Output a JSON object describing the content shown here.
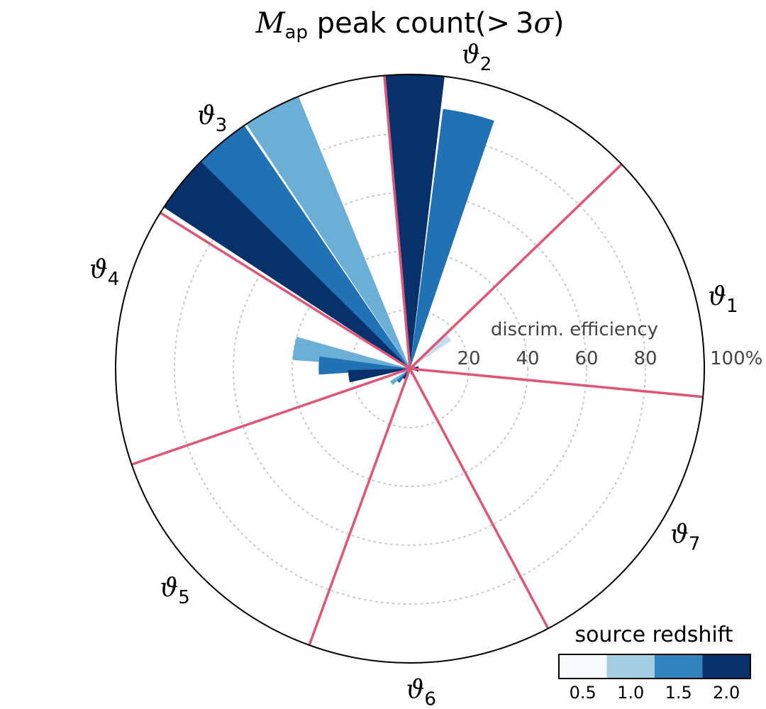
{
  "chart_data": {
    "type": "polar_bar",
    "title_symbol": "M",
    "title_symbol_sub": "ap",
    "title_rest": " peak count(",
    "title_gt": ">",
    "title_tail": "3",
    "title_sigma": "σ",
    "title_close": ")",
    "radial_axis_title": "discrim. efficiency",
    "radial_ticks": [
      "20",
      "40",
      "60",
      "80",
      "100%"
    ],
    "radial_tick_values": [
      20,
      40,
      60,
      80,
      100
    ],
    "rlim": [
      0,
      100
    ],
    "grid": true,
    "colorbar": {
      "title": "source redshift",
      "tick_labels": [
        "0.5",
        "1.0",
        "1.5",
        "2.0"
      ],
      "colors": [
        "#f7fbff",
        "#a6cee3",
        "#3182bd",
        "#08306b"
      ]
    },
    "redshift_colors": {
      "0.5": "#f7fbff",
      "1.0": "#c6dbef",
      "1.5": "#2171b5",
      "2.0": "#08306b"
    },
    "sector_labels": [
      {
        "symbol": "ϑ",
        "sub": "1"
      },
      {
        "symbol": "ϑ",
        "sub": "2"
      },
      {
        "symbol": "ϑ",
        "sub": "3"
      },
      {
        "symbol": "ϑ",
        "sub": "4"
      },
      {
        "symbol": "ϑ",
        "sub": "5"
      },
      {
        "symbol": "ϑ",
        "sub": "6"
      },
      {
        "symbol": "ϑ",
        "sub": "7"
      }
    ],
    "sector_label_angles_deg": [
      13,
      78,
      128,
      162,
      223,
      272,
      329
    ],
    "boundary_angles_deg": [
      -5.5,
      44,
      95,
      148,
      199,
      250,
      298
    ],
    "bars": [
      {
        "sector": 1,
        "redshift": "0.5",
        "angle_deg": 40,
        "value": 3,
        "color": "#f7fbff"
      },
      {
        "sector": 1,
        "redshift": "1.0",
        "angle_deg": 40,
        "value": 17,
        "color": "#c6dbef"
      },
      {
        "sector": 1,
        "redshift": "1.5",
        "angle_deg": 28,
        "value": 2,
        "color": "#2171b5"
      },
      {
        "sector": 1,
        "redshift": "2.0",
        "angle_deg": 10,
        "value": 3,
        "color": "#08306b"
      },
      {
        "sector": 2,
        "redshift": "1.0",
        "angle_deg": 89,
        "value": 3,
        "color": "#c6dbef"
      },
      {
        "sector": 2,
        "redshift": "1.5",
        "angle_deg": 77,
        "value": 89,
        "color": "#2171b5"
      },
      {
        "sector": 2,
        "redshift": "2.0",
        "angle_deg": 89,
        "value": 100,
        "color": "#08306b"
      },
      {
        "sector": 3,
        "redshift": "0.5",
        "angle_deg": 105,
        "value": 3,
        "color": "#f7fbff"
      },
      {
        "sector": 3,
        "redshift": "1.0",
        "angle_deg": 118,
        "value": 100,
        "color": "#6baed6"
      },
      {
        "sector": 3,
        "redshift": "1.5",
        "angle_deg": 130,
        "value": 100,
        "color": "#2171b5"
      },
      {
        "sector": 3,
        "redshift": "2.0",
        "angle_deg": 141,
        "value": 100,
        "color": "#08306b"
      },
      {
        "sector": 4,
        "redshift": "1.0",
        "angle_deg": 170,
        "value": 40,
        "color": "#6baed6"
      },
      {
        "sector": 4,
        "redshift": "1.5",
        "angle_deg": 178,
        "value": 31,
        "color": "#2171b5"
      },
      {
        "sector": 4,
        "redshift": "2.0",
        "angle_deg": 187,
        "value": 21,
        "color": "#08306b"
      },
      {
        "sector": 5,
        "redshift": "1.0",
        "angle_deg": 218,
        "value": 8,
        "color": "#6baed6"
      },
      {
        "sector": 5,
        "redshift": "1.5",
        "angle_deg": 228,
        "value": 6,
        "color": "#2171b5"
      },
      {
        "sector": 5,
        "redshift": "2.0",
        "angle_deg": 237,
        "value": 4,
        "color": "#08306b"
      },
      {
        "sector": 6,
        "redshift": "1.5",
        "angle_deg": 285,
        "value": 2,
        "color": "#2171b5"
      },
      {
        "sector": 7,
        "redshift": "2.0",
        "angle_deg": 345,
        "value": 3,
        "color": "#08306b"
      }
    ],
    "bar_width_deg": 11.5,
    "boundary_color": "#e05575",
    "grid_color": "#c8c8c8"
  }
}
